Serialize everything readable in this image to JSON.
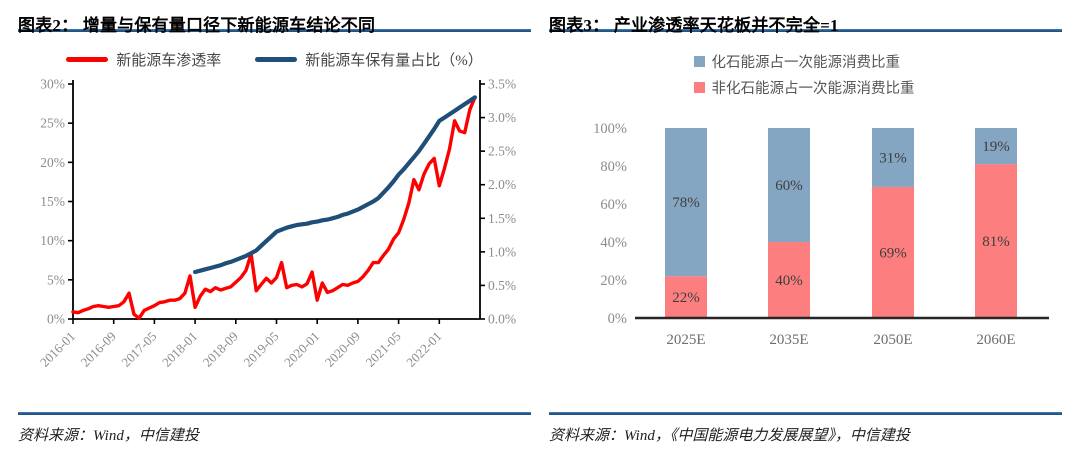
{
  "left_panel": {
    "title": "图表2： 增量与保有量口径下新能源车结论不同",
    "source": "资料来源：Wind，中信建投"
  },
  "right_panel": {
    "title": "图表3： 产业渗透率天花板并不完全=1",
    "source": "资料来源：Wind，《中国能源电力发展展望》，中信建投"
  },
  "rule_color": "#24568c",
  "chart_data": [
    {
      "type": "line",
      "title": "增量与保有量口径下新能源车结论不同",
      "x_start": "2016-01",
      "x_end": "2022-08",
      "x_unit": "month",
      "x_tick_labels": [
        "2016-01",
        "2016-09",
        "2017-05",
        "2018-01",
        "2018-09",
        "2019-05",
        "2020-01",
        "2020-09",
        "2021-05",
        "2022-01"
      ],
      "x_tick_month_step": 8,
      "total_months": 80,
      "left_axis": {
        "ticks": [
          "0%",
          "5%",
          "10%",
          "15%",
          "20%",
          "25%",
          "30%"
        ],
        "min": 0,
        "max": 30
      },
      "right_axis": {
        "ticks": [
          "0.0%",
          "0.5%",
          "1.0%",
          "1.5%",
          "2.0%",
          "2.5%",
          "3.0%",
          "3.5%"
        ],
        "min": 0,
        "max": 3.5
      },
      "grid": false,
      "legend_position": "top",
      "series": [
        {
          "name": "新能源车渗透率",
          "color": "#fe0000",
          "axis": "left",
          "start_month": 0,
          "values": [
            0.9,
            0.8,
            1.1,
            1.3,
            1.6,
            1.7,
            1.6,
            1.5,
            1.6,
            1.7,
            2.2,
            3.3,
            0.6,
            0.1,
            1.1,
            1.4,
            1.7,
            2.1,
            2.2,
            2.4,
            2.4,
            2.6,
            3.3,
            5.5,
            1.5,
            2.9,
            3.8,
            3.5,
            4.0,
            3.7,
            3.9,
            4.1,
            4.7,
            5.3,
            6.2,
            8.3,
            3.6,
            4.4,
            5.2,
            4.6,
            5.3,
            7.2,
            4.0,
            4.3,
            4.4,
            4.1,
            4.5,
            6.0,
            2.4,
            4.6,
            3.4,
            3.6,
            4.0,
            4.4,
            4.3,
            4.6,
            4.8,
            5.4,
            6.2,
            7.2,
            7.2,
            8.1,
            8.9,
            10.2,
            11.0,
            12.7,
            14.8,
            17.8,
            16.5,
            18.5,
            19.8,
            20.5,
            17.0,
            19.2,
            21.7,
            25.3,
            24.0,
            23.8,
            26.7,
            28.3
          ]
        },
        {
          "name": "新能源车保有量占比（%）",
          "color": "#1f4e79",
          "axis": "right",
          "start_month": 24,
          "values": [
            0.7,
            0.72,
            0.74,
            0.76,
            0.78,
            0.8,
            0.83,
            0.85,
            0.88,
            0.91,
            0.94,
            0.98,
            1.02,
            1.09,
            1.16,
            1.23,
            1.3,
            1.33,
            1.36,
            1.38,
            1.4,
            1.41,
            1.42,
            1.44,
            1.45,
            1.47,
            1.48,
            1.5,
            1.52,
            1.55,
            1.57,
            1.6,
            1.63,
            1.67,
            1.71,
            1.75,
            1.8,
            1.88,
            1.96,
            2.05,
            2.15,
            2.23,
            2.32,
            2.41,
            2.5,
            2.61,
            2.72,
            2.83,
            2.95,
            3.0,
            3.05,
            3.1,
            3.15,
            3.2,
            3.25,
            3.3
          ]
        }
      ]
    },
    {
      "type": "stacked_bar",
      "title": "产业渗透率天花板并不完全=1",
      "categories": [
        "2025E",
        "2035E",
        "2050E",
        "2060E"
      ],
      "y_ticks": [
        "0%",
        "20%",
        "40%",
        "60%",
        "80%",
        "100%"
      ],
      "ylim": [
        0,
        100
      ],
      "grid": false,
      "legend_position": "top",
      "legend": [
        {
          "label": "化石能源占一次能源消费比重",
          "color": "#85a6c3"
        },
        {
          "label": "非化石能源占一次能源消费比重",
          "color": "#fc7e7e"
        }
      ],
      "series": [
        {
          "name": "非化石能源占一次能源消费比重",
          "color": "#fc7e7e",
          "values": [
            22,
            40,
            69,
            81
          ]
        },
        {
          "name": "化石能源占一次能源消费比重",
          "color": "#85a6c3",
          "values": [
            78,
            60,
            31,
            19
          ]
        }
      ]
    }
  ]
}
